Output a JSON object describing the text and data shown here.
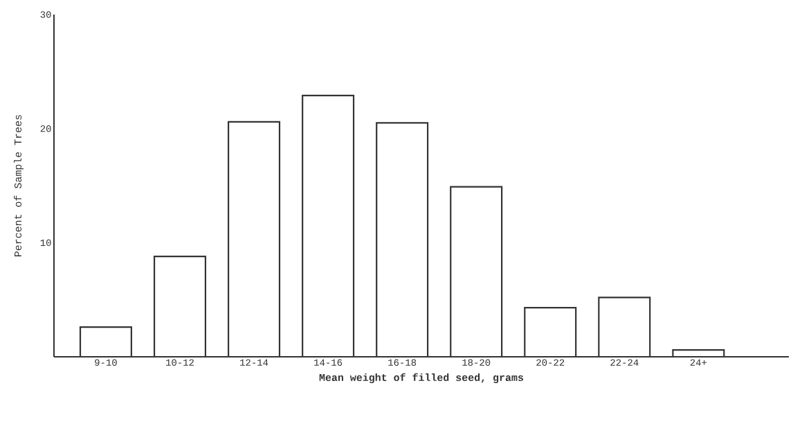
{
  "chart_data": {
    "type": "bar",
    "ylabel": "Percent of Sample Trees",
    "xlabel": "Mean weight of filled seed, grams",
    "categories": [
      "9-10",
      "10-12",
      "12-14",
      "14-16",
      "16-18",
      "18-20",
      "20-22",
      "22-24",
      "24+"
    ],
    "values": [
      2.6,
      8.8,
      20.6,
      22.9,
      20.5,
      14.9,
      4.3,
      5.2,
      0.6
    ],
    "color": "#333333",
    "ylim": [
      0,
      30
    ],
    "yticks": [
      10,
      20,
      30
    ],
    "grid": false
  }
}
